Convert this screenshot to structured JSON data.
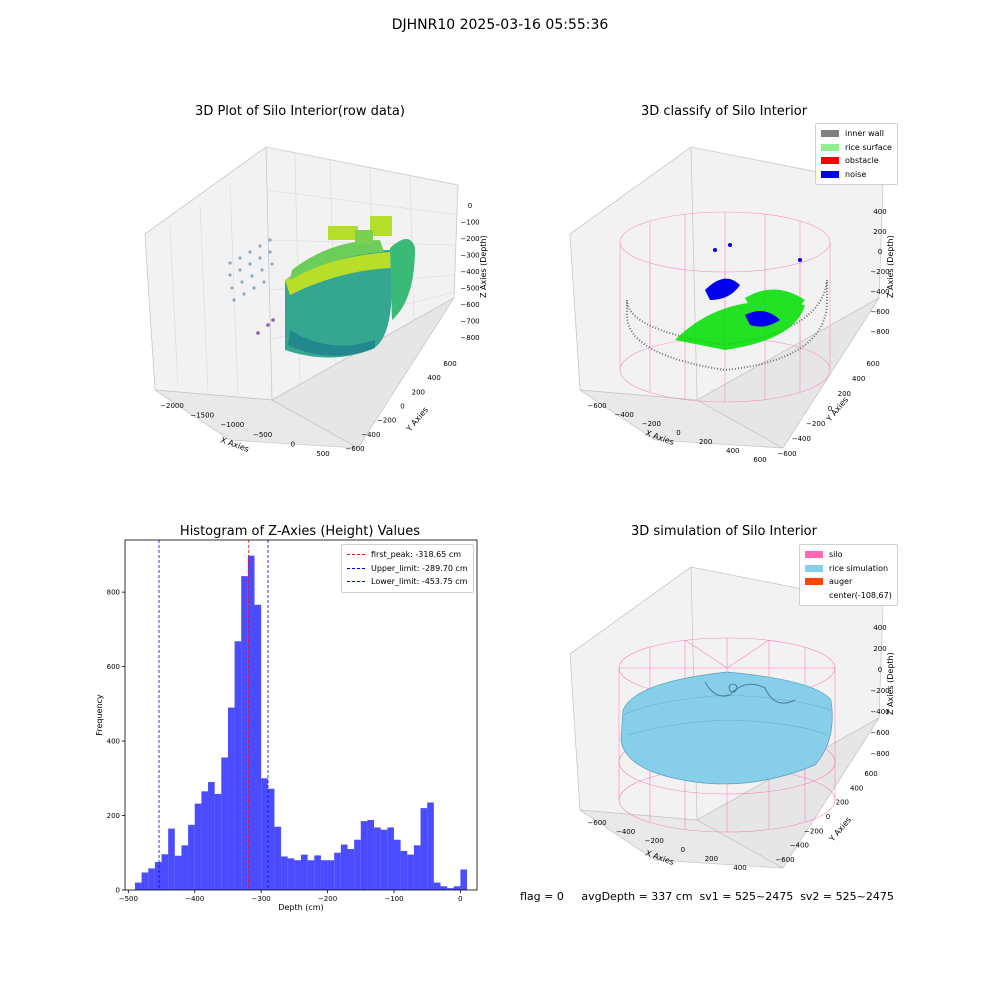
{
  "suptitle": "DJHNR10 2025-03-16 05:55:36",
  "panel1": {
    "title": "3D Plot of Silo Interior(row data)",
    "xlabel": "X Axies",
    "ylabel": "Y Axies",
    "zlabel": "Z Axies (Depth)",
    "xticks": [
      "-2000",
      "-1500",
      "-1000",
      "-500",
      "0",
      "500"
    ],
    "yticks": [
      "-600",
      "-400",
      "-200",
      "0",
      "200",
      "400",
      "600"
    ],
    "zticks": [
      "0",
      "-100",
      "-200",
      "-300",
      "-400",
      "-500",
      "-600",
      "-700",
      "-800"
    ]
  },
  "panel2": {
    "title": "3D classify of Silo Interior",
    "xlabel": "X Axies",
    "ylabel": "Y Axies",
    "zlabel": "Z Axies (Depth)",
    "xticks": [
      "-600",
      "-400",
      "-200",
      "0",
      "200",
      "400",
      "600"
    ],
    "yticks": [
      "-600",
      "-400",
      "-200",
      "0",
      "200",
      "400",
      "600"
    ],
    "zticks": [
      "400",
      "200",
      "0",
      "-200",
      "-400",
      "-600",
      "-800"
    ],
    "legend": [
      {
        "label": "inner wall",
        "color": "#808080"
      },
      {
        "label": "rice surface",
        "color": "#90ee90"
      },
      {
        "label": "obstacle",
        "color": "#ff0000"
      },
      {
        "label": "noise",
        "color": "#0000ff"
      }
    ]
  },
  "panel4": {
    "title": "3D simulation of Silo Interior",
    "xlabel": "X Axies",
    "ylabel": "Y Axies",
    "zlabel": "Z Axies (Depth)",
    "xticks": [
      "-600",
      "-400",
      "-200",
      "0",
      "200",
      "400"
    ],
    "yticks": [
      "-600",
      "-400",
      "-200",
      "0",
      "200",
      "400",
      "600"
    ],
    "zticks": [
      "400",
      "200",
      "0",
      "-200",
      "-400",
      "-600",
      "-800"
    ],
    "legend": [
      {
        "label": "silo",
        "color": "#ff69b4"
      },
      {
        "label": "rice simulation",
        "color": "#87ceeb"
      },
      {
        "label": "auger",
        "color": "#ff4500"
      },
      {
        "label": "center(-108,67)",
        "color": ""
      }
    ]
  },
  "footer": "flag = 0     avgDepth = 337 cm  sv1 = 525~2475  sv2 = 525~2475",
  "chart_data": {
    "type": "bar",
    "title": "Histogram of Z-Axies (Height) Values",
    "xlabel": "Depth (cm)",
    "ylabel": "Frequency",
    "xlim": [
      -505,
      25
    ],
    "ylim": [
      0,
      940
    ],
    "xticks": [
      -500,
      -400,
      -300,
      -200,
      -100,
      0
    ],
    "yticks": [
      0,
      200,
      400,
      600,
      800
    ],
    "bar_color": "#0000ff",
    "bin_width": 10,
    "bins_left": [
      -490,
      -480,
      -470,
      -460,
      -450,
      -440,
      -430,
      -420,
      -410,
      -400,
      -390,
      -380,
      -370,
      -360,
      -350,
      -340,
      -330,
      -320,
      -310,
      -300,
      -290,
      -280,
      -270,
      -260,
      -250,
      -240,
      -230,
      -220,
      -210,
      -200,
      -190,
      -180,
      -170,
      -160,
      -150,
      -140,
      -130,
      -120,
      -110,
      -100,
      -90,
      -80,
      -70,
      -60,
      -50,
      -40,
      -30,
      -20,
      -10,
      0
    ],
    "values": [
      20,
      47,
      58,
      75,
      96,
      165,
      92,
      120,
      175,
      232,
      265,
      290,
      258,
      356,
      490,
      668,
      843,
      898,
      766,
      300,
      272,
      170,
      90,
      85,
      80,
      95,
      80,
      93,
      80,
      80,
      100,
      122,
      110,
      135,
      185,
      188,
      168,
      162,
      168,
      135,
      105,
      95,
      120,
      220,
      235,
      20,
      10,
      5,
      10,
      55
    ],
    "lines": [
      {
        "label": "first_peak: -318.65 cm",
        "x": -318.65,
        "color": "#ff0000"
      },
      {
        "label": "Upper_limit: -289.70 cm",
        "x": -289.7,
        "color": "#0000ff"
      },
      {
        "label": "Lower_limit: -453.75 cm",
        "x": -453.75,
        "color": "#0000ff"
      }
    ]
  }
}
